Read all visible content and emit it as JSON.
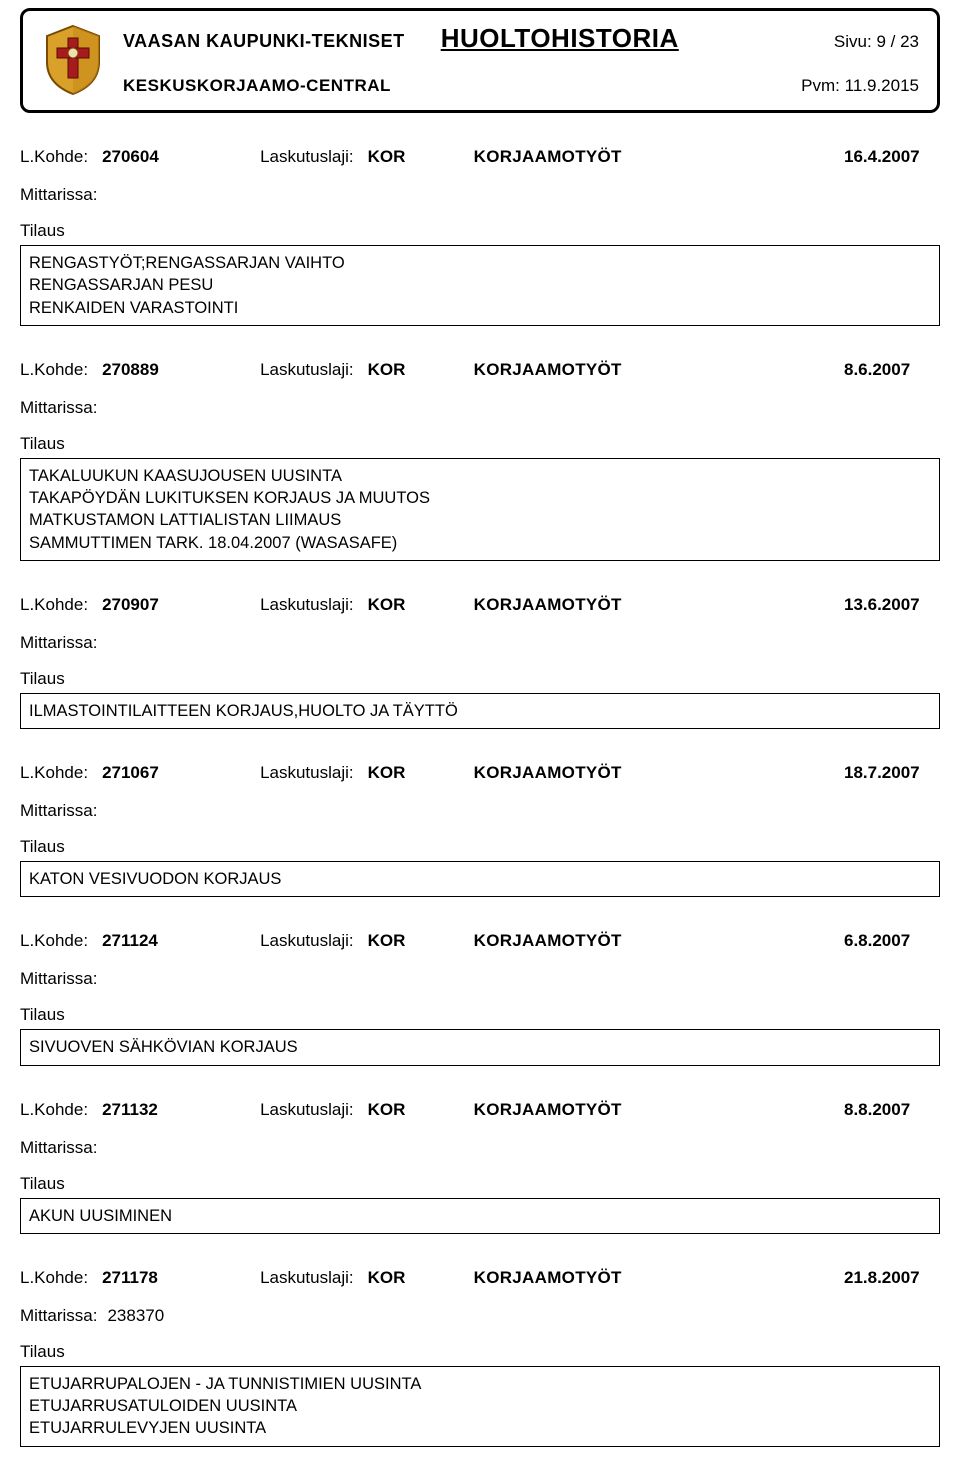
{
  "header": {
    "org1": "VAASAN KAUPUNKI-TEKNISET",
    "org2": "KESKUSKORJAAMO-CENTRAL",
    "title": "HUOLTOHISTORIA",
    "page_label": "Sivu:",
    "page_value": "9 / 23",
    "date_label": "Pvm:",
    "date_value": "11.9.2015"
  },
  "labels": {
    "lk": "L.Kohde:",
    "ll": "Laskutuslaji:",
    "mitt": "Mittarissa:",
    "tilaus": "Tilaus"
  },
  "entries": [
    {
      "code": "270604",
      "ll": "KOR",
      "kt": "KORJAAMOTYÖT",
      "date": "16.4.2007",
      "mitt": "",
      "lines": [
        "RENGASTYÖT;RENGASSARJAN VAIHTO",
        "RENGASSARJAN PESU",
        "RENKAIDEN VARASTOINTI"
      ]
    },
    {
      "code": "270889",
      "ll": "KOR",
      "kt": "KORJAAMOTYÖT",
      "date": "8.6.2007",
      "mitt": "",
      "lines": [
        "TAKALUUKUN KAASUJOUSEN UUSINTA",
        "TAKAPÖYDÄN LUKITUKSEN KORJAUS JA MUUTOS",
        "MATKUSTAMON LATTIALISTAN LIIMAUS",
        "SAMMUTTIMEN TARK. 18.04.2007 (WASASAFE)"
      ]
    },
    {
      "code": "270907",
      "ll": "KOR",
      "kt": "KORJAAMOTYÖT",
      "date": "13.6.2007",
      "mitt": "",
      "lines": [
        "ILMASTOINTILAITTEEN KORJAUS,HUOLTO JA TÄYTTÖ"
      ]
    },
    {
      "code": "271067",
      "ll": "KOR",
      "kt": "KORJAAMOTYÖT",
      "date": "18.7.2007",
      "mitt": "",
      "lines": [
        "KATON VESIVUODON KORJAUS"
      ]
    },
    {
      "code": "271124",
      "ll": "KOR",
      "kt": "KORJAAMOTYÖT",
      "date": "6.8.2007",
      "mitt": "",
      "lines": [
        "SIVUOVEN SÄHKÖVIAN KORJAUS"
      ]
    },
    {
      "code": "271132",
      "ll": "KOR",
      "kt": "KORJAAMOTYÖT",
      "date": "8.8.2007",
      "mitt": "",
      "lines": [
        "AKUN UUSIMINEN"
      ]
    },
    {
      "code": "271178",
      "ll": "KOR",
      "kt": "KORJAAMOTYÖT",
      "date": "21.8.2007",
      "mitt": "238370",
      "lines": [
        "ETUJARRUPALOJEN - JA TUNNISTIMIEN UUSINTA",
        "ETUJARRUSATULOIDEN UUSINTA",
        "ETUJARRULEVYJEN UUSINTA"
      ]
    }
  ]
}
